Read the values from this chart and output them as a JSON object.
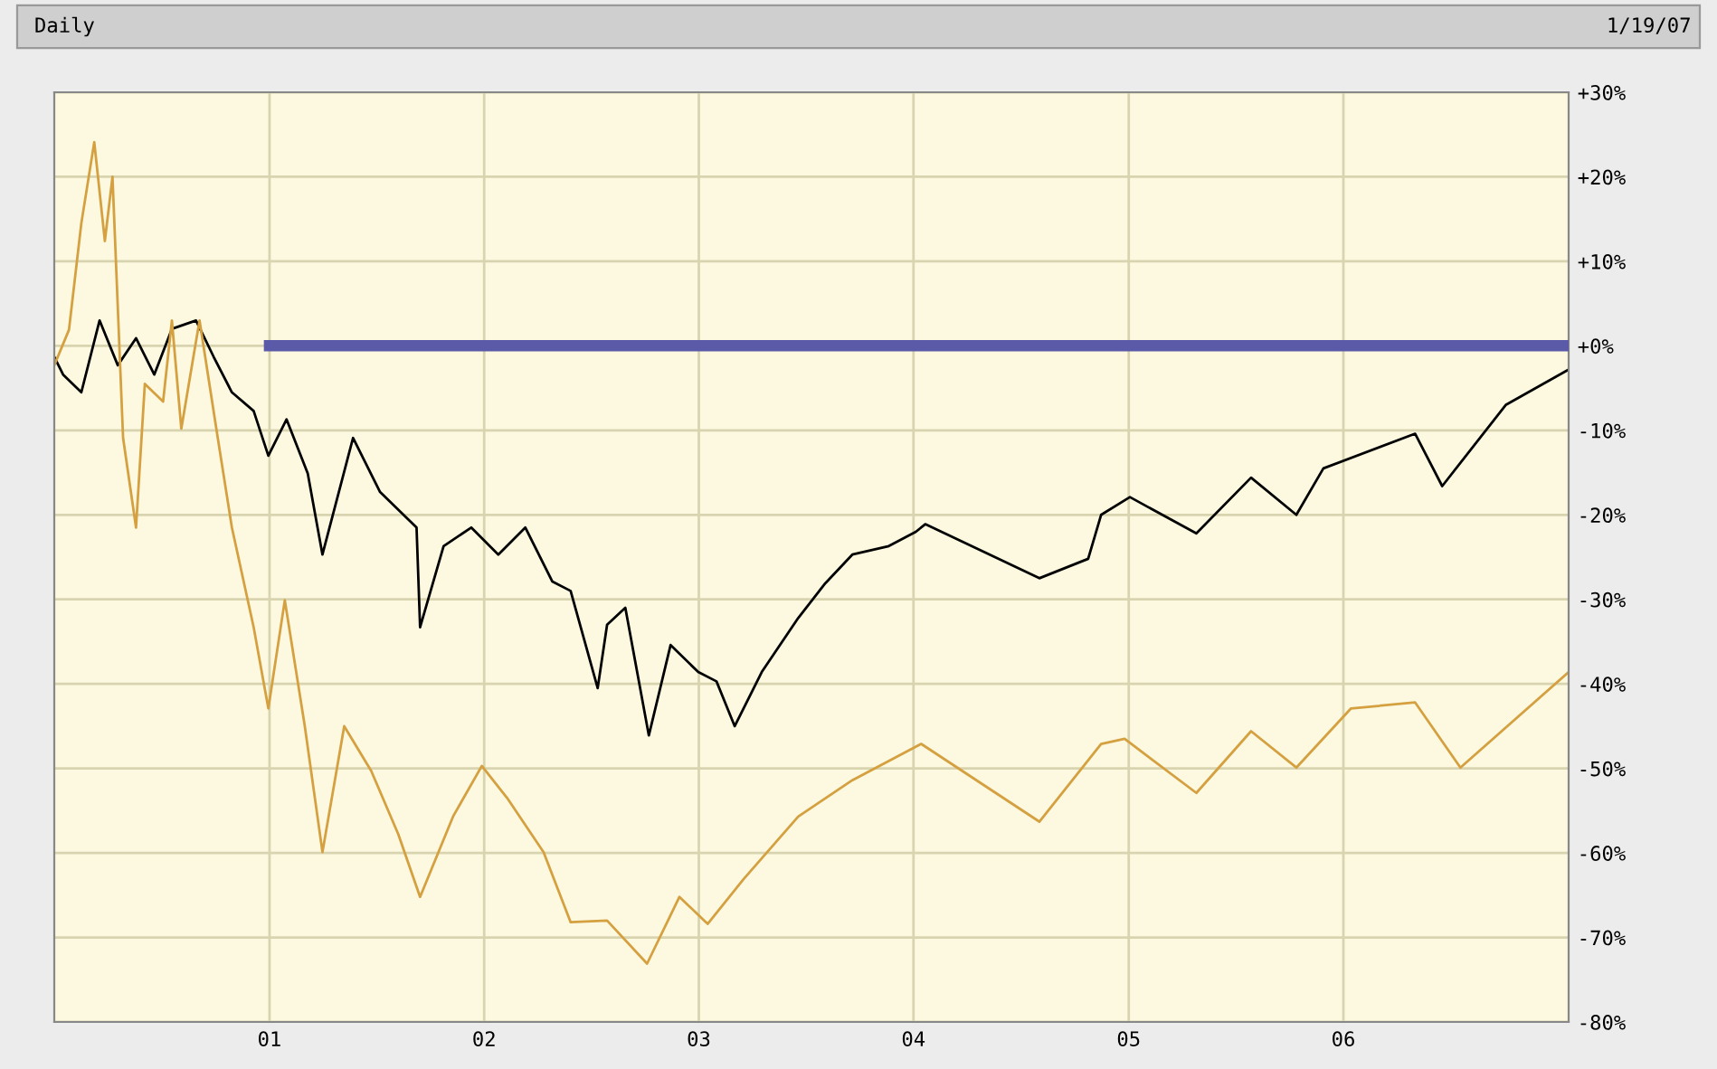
{
  "chart_data": {
    "type": "line",
    "title": "Daily",
    "annotations": [
      "1/19/07"
    ],
    "series": [
      {
        "color": "#000000",
        "x": [
          "2000-01-01",
          "2000-01-16",
          "2000-02-16",
          "2000-03-18",
          "2000-04-18",
          "2000-05-19",
          "2000-06-19",
          "2000-07-19",
          "2000-08-29",
          "2000-09-28",
          "2000-10-29",
          "2000-12-05",
          "2000-12-30",
          "2001-01-30",
          "2001-03-07",
          "2001-04-01",
          "2001-05-23",
          "2001-07-08",
          "2001-09-08",
          "2001-09-14",
          "2001-10-24",
          "2001-12-10",
          "2002-01-25",
          "2002-03-12",
          "2002-04-27",
          "2002-05-28",
          "2002-07-13",
          "2002-07-29",
          "2002-08-29",
          "2002-10-08",
          "2002-11-14",
          "2002-12-31",
          "2003-01-31",
          "2003-03-03",
          "2003-04-18",
          "2003-06-19",
          "2003-08-04",
          "2003-09-19",
          "2003-11-20",
          "2004-01-05",
          "2004-01-21",
          "2004-08-02",
          "2004-10-24",
          "2004-11-15",
          "2005-01-03",
          "2005-04-26",
          "2005-07-28",
          "2005-10-13",
          "2005-11-28",
          "2006-05-03",
          "2006-06-18",
          "2006-10-04",
          "2007-01-19"
        ],
        "values": [
          -1.3,
          -3.4,
          -5.5,
          3.0,
          -2.3,
          0.9,
          -3.4,
          2.0,
          3.0,
          -1.3,
          -5.5,
          -7.7,
          -13.0,
          -8.7,
          -15.1,
          -24.7,
          -10.9,
          -17.3,
          -21.5,
          -33.3,
          -23.7,
          -21.5,
          -24.7,
          -21.5,
          -27.9,
          -29.0,
          -40.5,
          -33.0,
          -31.0,
          -46.1,
          -35.4,
          -38.6,
          -39.7,
          -45.0,
          -38.6,
          -32.2,
          -28.1,
          -24.7,
          -23.7,
          -22.0,
          -21.1,
          -27.5,
          -25.2,
          -20.0,
          -17.9,
          -22.2,
          -15.6,
          -20.0,
          -14.5,
          -10.4,
          -16.6,
          -7.0,
          -2.8
        ]
      },
      {
        "color": "#d4a040",
        "x": [
          "2000-01-01",
          "2000-01-26",
          "2000-02-16",
          "2000-03-09",
          "2000-03-27",
          "2000-04-09",
          "2000-04-27",
          "2000-05-19",
          "2000-06-03",
          "2000-07-04",
          "2000-07-19",
          "2000-08-04",
          "2000-09-04",
          "2000-10-05",
          "2000-10-29",
          "2000-12-05",
          "2000-12-30",
          "2001-01-27",
          "2001-03-02",
          "2001-04-01",
          "2001-05-08",
          "2001-06-23",
          "2001-08-08",
          "2001-09-14",
          "2001-11-09",
          "2001-12-28",
          "2002-02-09",
          "2002-04-12",
          "2002-05-28",
          "2002-07-29",
          "2002-10-05",
          "2002-11-29",
          "2003-01-16",
          "2003-03-18",
          "2003-06-19",
          "2003-09-19",
          "2004-01-14",
          "2004-08-02",
          "2004-11-15",
          "2004-12-25",
          "2005-04-26",
          "2005-07-28",
          "2005-10-13",
          "2006-01-14",
          "2006-05-03",
          "2006-07-19",
          "2007-01-19"
        ],
        "values": [
          -2.3,
          1.9,
          14.5,
          24.1,
          12.4,
          20.0,
          -10.9,
          -21.5,
          -4.5,
          -6.6,
          3.0,
          -9.8,
          3.0,
          -10.9,
          -21.5,
          -33.3,
          -42.9,
          -30.1,
          -45.0,
          -59.9,
          -45.0,
          -50.3,
          -57.8,
          -65.2,
          -55.7,
          -49.7,
          -53.5,
          -59.9,
          -68.2,
          -68.0,
          -73.1,
          -65.2,
          -68.4,
          -63.1,
          -55.7,
          -51.4,
          -47.1,
          -56.3,
          -47.1,
          -46.5,
          -52.9,
          -45.6,
          -49.9,
          -42.9,
          -42.2,
          -49.9,
          -38.6
        ]
      },
      {
        "color": "#5a5aa8",
        "x": [
          "2001-01-01",
          "2007-01-19"
        ],
        "values": [
          0,
          0
        ]
      }
    ],
    "xlim": [
      "2000-01-01",
      "2007-01-19"
    ],
    "xticks": [
      {
        "value": "2001-01-01",
        "label": "01"
      },
      {
        "value": "2002-01-01",
        "label": "02"
      },
      {
        "value": "2003-01-01",
        "label": "03"
      },
      {
        "value": "2004-01-01",
        "label": "04"
      },
      {
        "value": "2005-01-01",
        "label": "05"
      },
      {
        "value": "2006-01-01",
        "label": "06"
      }
    ],
    "ylim": [
      -80,
      30
    ],
    "yticks": [
      {
        "value": 30,
        "label": "+30%"
      },
      {
        "value": 20,
        "label": "+20%"
      },
      {
        "value": 10,
        "label": "+10%"
      },
      {
        "value": 0,
        "label": "+0%"
      },
      {
        "value": -10,
        "label": "-10%"
      },
      {
        "value": -20,
        "label": "-20%"
      },
      {
        "value": -30,
        "label": "-30%"
      },
      {
        "value": -40,
        "label": "-40%"
      },
      {
        "value": -50,
        "label": "-50%"
      },
      {
        "value": -60,
        "label": "-60%"
      },
      {
        "value": -70,
        "label": "-70%"
      },
      {
        "value": -80,
        "label": "-80%"
      }
    ],
    "grid": true
  }
}
